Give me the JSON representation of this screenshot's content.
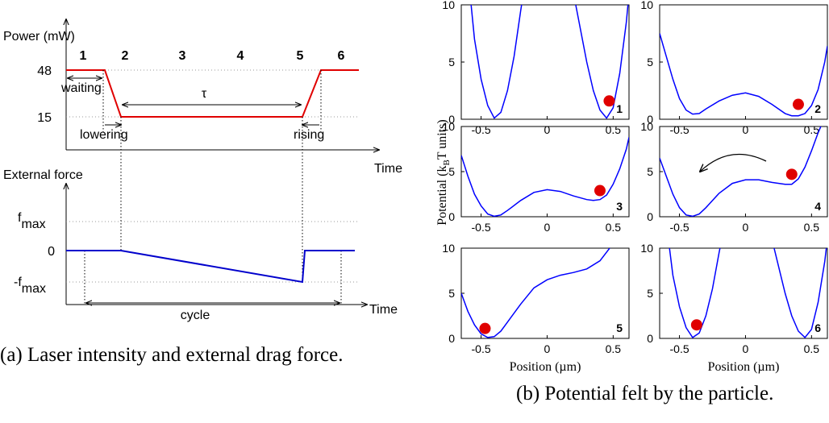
{
  "panel_a": {
    "power": {
      "ylabel": "Power (mW)",
      "levels": [
        48,
        15
      ],
      "phases": [
        "1",
        "2",
        "3",
        "4",
        "5",
        "6"
      ],
      "waiting": "waiting",
      "tau": "τ",
      "lowering": "lowering",
      "rising": "rising",
      "xlabel": "Time"
    },
    "force": {
      "ylabel": "External force",
      "fmax": [
        "f",
        "max"
      ],
      "zero": 0,
      "minus_fmax": [
        "-f",
        "max"
      ],
      "cycle": "cycle",
      "xlabel": "Time"
    },
    "caption": "(a) Laser intensity and external drag force."
  },
  "panel_b": {
    "ylabel": [
      "Potential (k",
      "B",
      "T units)"
    ],
    "caption": "(b) Potential felt by the particle."
  },
  "chart_data": [
    {
      "type": "line",
      "label": "1",
      "xlim": [
        -0.65,
        0.62
      ],
      "ylim": [
        0,
        10
      ],
      "xticks": [
        -0.5,
        0,
        0.5
      ],
      "yticks": [
        0,
        5,
        10
      ],
      "x": [
        -0.58,
        -0.55,
        -0.5,
        -0.45,
        -0.4,
        -0.35,
        -0.3,
        -0.25,
        -0.2,
        -0.18,
        0,
        0.2,
        0.25,
        0.3,
        0.35,
        0.4,
        0.45,
        0.5,
        0.55,
        0.6,
        0.62
      ],
      "series": [
        {
          "color": "#0000ff",
          "values": [
            10.5,
            7,
            3.5,
            1.2,
            0.1,
            0.6,
            2.5,
            5.5,
            9.5,
            11,
            null,
            11,
            8,
            5,
            2.5,
            0.8,
            0.1,
            1,
            4,
            8.5,
            11
          ]
        }
      ],
      "marker": {
        "x": 0.47,
        "y": 1.6,
        "color": "#e00000"
      }
    },
    {
      "type": "line",
      "label": "2",
      "xlim": [
        -0.65,
        0.62
      ],
      "ylim": [
        0,
        10
      ],
      "xticks": [
        -0.5,
        0,
        0.5
      ],
      "yticks": [
        0,
        5,
        10
      ],
      "x": [
        -0.65,
        -0.6,
        -0.55,
        -0.5,
        -0.45,
        -0.4,
        -0.35,
        -0.3,
        -0.2,
        -0.1,
        0,
        0.1,
        0.2,
        0.3,
        0.35,
        0.4,
        0.45,
        0.5,
        0.55,
        0.6,
        0.62
      ],
      "series": [
        {
          "color": "#0000ff",
          "values": [
            7.5,
            5.5,
            3.5,
            1.8,
            0.8,
            0.45,
            0.5,
            0.9,
            1.6,
            2.1,
            2.3,
            2.0,
            1.3,
            0.5,
            0.3,
            0.3,
            0.5,
            1.2,
            2.6,
            5,
            6.4
          ]
        }
      ],
      "marker": {
        "x": 0.4,
        "y": 1.3,
        "color": "#e00000"
      }
    },
    {
      "type": "line",
      "label": "3",
      "xlim": [
        -0.65,
        0.62
      ],
      "ylim": [
        0,
        10
      ],
      "xticks": [
        -0.5,
        0,
        0.5
      ],
      "yticks": [
        0,
        5,
        10
      ],
      "x": [
        -0.65,
        -0.6,
        -0.55,
        -0.5,
        -0.45,
        -0.4,
        -0.35,
        -0.3,
        -0.2,
        -0.1,
        0,
        0.1,
        0.2,
        0.3,
        0.35,
        0.4,
        0.45,
        0.5,
        0.55,
        0.6,
        0.62
      ],
      "series": [
        {
          "color": "#0000ff",
          "values": [
            6.8,
            4.5,
            2.5,
            1.2,
            0.3,
            0.05,
            0.2,
            0.7,
            1.8,
            2.7,
            3.0,
            2.8,
            2.3,
            1.9,
            1.8,
            1.9,
            2.4,
            3.6,
            5.3,
            7.5,
            8.8
          ]
        }
      ],
      "marker": {
        "x": 0.4,
        "y": 2.9,
        "color": "#e00000"
      }
    },
    {
      "type": "line",
      "label": "4",
      "xlim": [
        -0.65,
        0.62
      ],
      "ylim": [
        0,
        10
      ],
      "xticks": [
        -0.5,
        0,
        0.5
      ],
      "yticks": [
        0,
        5,
        10
      ],
      "x": [
        -0.65,
        -0.6,
        -0.55,
        -0.5,
        -0.45,
        -0.4,
        -0.35,
        -0.3,
        -0.2,
        -0.1,
        0,
        0.1,
        0.2,
        0.3,
        0.35,
        0.4,
        0.45,
        0.5,
        0.55,
        0.6
      ],
      "series": [
        {
          "color": "#0000ff",
          "values": [
            6.5,
            4.5,
            2.5,
            1,
            0.2,
            0.05,
            0.3,
            1,
            2.6,
            3.7,
            4.1,
            4.1,
            3.8,
            3.6,
            3.6,
            4.2,
            5.5,
            7.3,
            9.3,
            11
          ]
        }
      ],
      "marker": {
        "x": 0.35,
        "y": 4.7,
        "color": "#e00000"
      }
    },
    {
      "type": "line",
      "label": "5",
      "xlabel": "Position (µm)",
      "xlim": [
        -0.65,
        0.62
      ],
      "ylim": [
        0,
        10
      ],
      "xticks": [
        -0.5,
        0,
        0.5
      ],
      "yticks": [
        0,
        5,
        10
      ],
      "x": [
        -0.65,
        -0.6,
        -0.55,
        -0.5,
        -0.45,
        -0.4,
        -0.35,
        -0.3,
        -0.2,
        -0.1,
        0,
        0.1,
        0.2,
        0.3,
        0.4,
        0.5
      ],
      "series": [
        {
          "color": "#0000ff",
          "values": [
            5,
            3,
            1.5,
            0.5,
            0.1,
            0.2,
            0.8,
            1.8,
            3.8,
            5.6,
            6.5,
            7,
            7.3,
            7.7,
            8.6,
            10.5
          ]
        }
      ],
      "marker": {
        "x": -0.47,
        "y": 1.1,
        "color": "#e00000"
      }
    },
    {
      "type": "line",
      "label": "6",
      "xlabel": "Position (µm)",
      "xlim": [
        -0.65,
        0.62
      ],
      "ylim": [
        0,
        10
      ],
      "xticks": [
        -0.5,
        0,
        0.5
      ],
      "yticks": [
        0,
        5,
        10
      ],
      "x": [
        -0.58,
        -0.55,
        -0.5,
        -0.45,
        -0.4,
        -0.35,
        -0.3,
        -0.25,
        -0.2,
        -0.18,
        0,
        0.2,
        0.25,
        0.3,
        0.35,
        0.4,
        0.45,
        0.5,
        0.55,
        0.6,
        0.62
      ],
      "series": [
        {
          "color": "#0000ff",
          "values": [
            10.5,
            7,
            3.5,
            1.2,
            0.1,
            0.6,
            2.5,
            5.5,
            9.5,
            11,
            null,
            11,
            8,
            5,
            2.5,
            0.8,
            0.1,
            1,
            4,
            8.5,
            11
          ]
        }
      ],
      "marker": {
        "x": -0.37,
        "y": 1.5,
        "color": "#e00000"
      }
    }
  ]
}
